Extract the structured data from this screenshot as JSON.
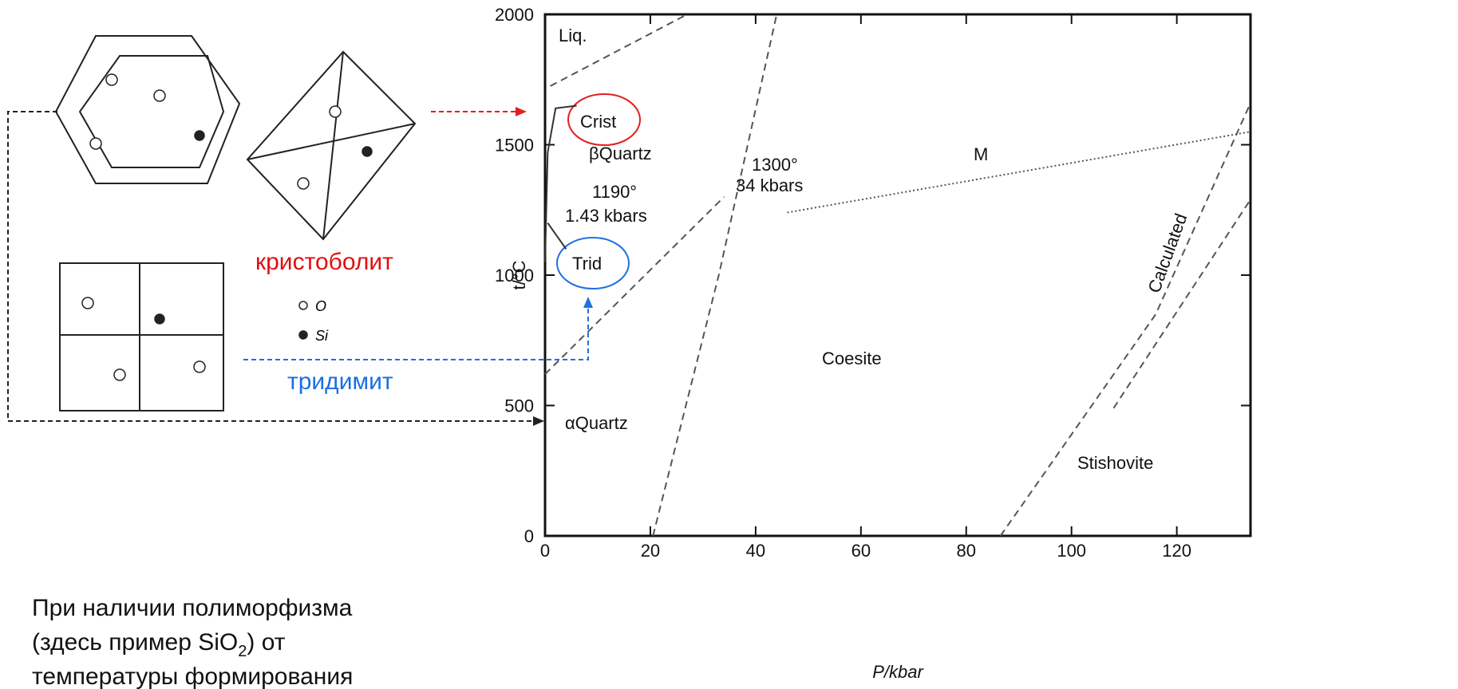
{
  "chart_data": {
    "type": "line",
    "xlabel": "P/kbar",
    "ylabel": "t/°C",
    "xlim": [
      0,
      134
    ],
    "ylim": [
      0,
      2000
    ],
    "xticks": [
      0,
      20,
      40,
      60,
      80,
      100,
      120
    ],
    "yticks": [
      0,
      500,
      1000,
      1500,
      2000
    ],
    "series": [
      {
        "color": "#555555",
        "style": "dashed",
        "x": [
          1,
          27
        ],
        "values": [
          1725,
          2000
        ]
      },
      {
        "color": "#555555",
        "style": "dashed",
        "x": [
          20.5,
          33,
          44
        ],
        "values": [
          0,
          1000,
          2000
        ]
      },
      {
        "color": "#555555",
        "style": "dashed",
        "x": [
          0,
          34
        ],
        "values": [
          620,
          1300
        ]
      },
      {
        "color": "#555555",
        "style": "dashed",
        "x": [
          86.5,
          116,
          134
        ],
        "values": [
          0,
          850,
          1660
        ]
      },
      {
        "color": "#555555",
        "style": "dashed",
        "x": [
          108,
          134
        ],
        "values": [
          490,
          1290
        ]
      },
      {
        "color": "#555555",
        "style": "dotted",
        "x": [
          46,
          134
        ],
        "values": [
          1240,
          1550
        ]
      },
      {
        "color": "#333333",
        "style": "solid",
        "x": [
          0,
          0.5,
          2,
          6
        ],
        "values": [
          1050,
          1470,
          1640,
          1650
        ]
      },
      {
        "color": "#333333",
        "style": "solid",
        "x": [
          0.5,
          4
        ],
        "values": [
          1200,
          1100
        ]
      }
    ],
    "annotations": [
      "Liq.",
      "Crist",
      "βQuartz",
      "1190°",
      "1.43 kbars",
      "1300°",
      "34 kbars",
      "M",
      "Trid",
      "Calculated",
      "Coesite",
      "αQuartz",
      "Stishovite"
    ]
  },
  "slide": {
    "cristobalite": "кристоболит",
    "tridymite": "тридимит",
    "legend": [
      "O",
      "Si"
    ],
    "text": {
      "line1": "При наличии полиморфизма",
      "line2a": "(здесь пример SiO",
      "line2sub": "2",
      "line2b": ") от",
      "line3": "температуры формирования"
    }
  }
}
